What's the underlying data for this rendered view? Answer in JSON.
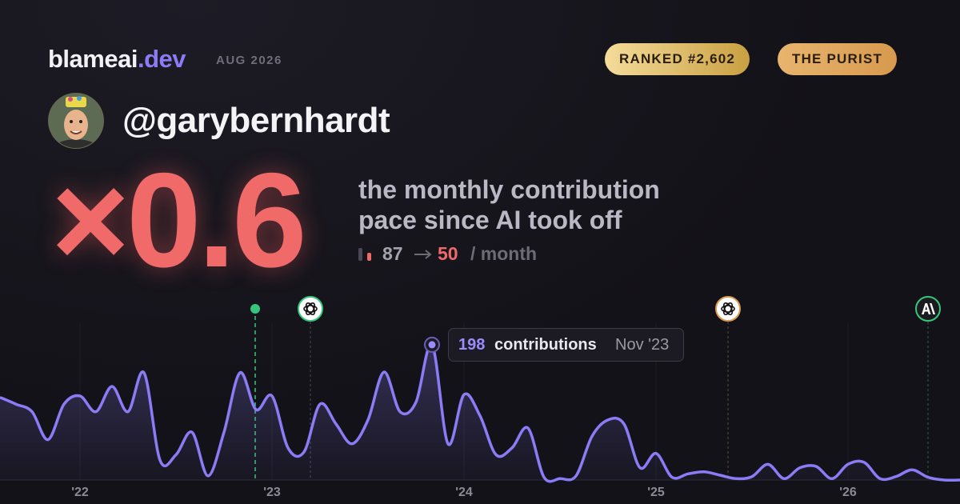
{
  "header": {
    "brand": "blameai",
    "brand_suffix": ".dev",
    "date": "AUG 2026",
    "badges": [
      "RANKED #2,602",
      "THE PURIST"
    ]
  },
  "profile": {
    "handle": "@garybernhardt"
  },
  "headline": {
    "multiplier": "×0.6",
    "description": [
      "the monthly contribution",
      "pace since AI took off"
    ],
    "before": 87,
    "after": 50,
    "unit": "/ month"
  },
  "tooltip": {
    "value": 198,
    "label": "contributions",
    "date": "Nov '23"
  },
  "chart_data": {
    "type": "area",
    "color": "#8b7cf6",
    "categories": [
      null,
      null,
      null,
      null,
      null,
      "'22",
      null,
      null,
      null,
      null,
      null,
      null,
      null,
      null,
      null,
      null,
      null,
      "'23",
      null,
      null,
      null,
      null,
      null,
      null,
      null,
      null,
      null,
      null,
      null,
      "'24",
      null,
      null,
      null,
      null,
      null,
      null,
      null,
      null,
      null,
      null,
      null,
      "'25",
      null,
      null,
      null,
      null,
      null,
      null,
      null,
      null,
      null,
      null,
      null,
      "'26",
      null,
      null,
      null,
      null,
      null,
      null,
      null
    ],
    "values": [
      121,
      111,
      100,
      59,
      111,
      123,
      100,
      137,
      100,
      157,
      29,
      37,
      70,
      6,
      70,
      157,
      103,
      123,
      47,
      41,
      111,
      82,
      53,
      88,
      158,
      100,
      114,
      198,
      53,
      125,
      94,
      37,
      47,
      76,
      4,
      2,
      6,
      64,
      88,
      82,
      18,
      39,
      4,
      9,
      12,
      7,
      2,
      5,
      23,
      2,
      18,
      20,
      2,
      23,
      26,
      2,
      5,
      15,
      4,
      0,
      0
    ],
    "ylim": [
      0,
      230
    ]
  }
}
